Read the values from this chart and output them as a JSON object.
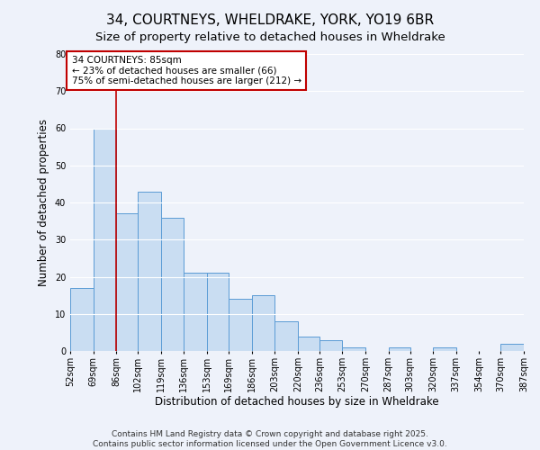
{
  "title": "34, COURTNEYS, WHELDRAKE, YORK, YO19 6BR",
  "subtitle": "Size of property relative to detached houses in Wheldrake",
  "xlabel": "Distribution of detached houses by size in Wheldrake",
  "ylabel": "Number of detached properties",
  "bins": [
    52,
    69,
    86,
    102,
    119,
    136,
    153,
    169,
    186,
    203,
    220,
    236,
    253,
    270,
    287,
    303,
    320,
    337,
    354,
    370,
    387
  ],
  "bin_labels": [
    "52sqm",
    "69sqm",
    "86sqm",
    "102sqm",
    "119sqm",
    "136sqm",
    "153sqm",
    "169sqm",
    "186sqm",
    "203sqm",
    "220sqm",
    "236sqm",
    "253sqm",
    "270sqm",
    "287sqm",
    "303sqm",
    "320sqm",
    "337sqm",
    "354sqm",
    "370sqm",
    "387sqm"
  ],
  "counts": [
    17,
    60,
    37,
    43,
    36,
    21,
    21,
    14,
    15,
    8,
    4,
    3,
    1,
    0,
    1,
    0,
    1,
    0,
    0,
    2
  ],
  "bar_color": "#c9ddf2",
  "bar_edge_color": "#5b9bd5",
  "property_line_x": 86,
  "annotation_text": "34 COURTNEYS: 85sqm\n← 23% of detached houses are smaller (66)\n75% of semi-detached houses are larger (212) →",
  "annotation_box_color": "white",
  "annotation_box_edge": "#c00000",
  "vline_color": "#c00000",
  "ylim": [
    0,
    80
  ],
  "yticks": [
    0,
    10,
    20,
    30,
    40,
    50,
    60,
    70,
    80
  ],
  "footer_line1": "Contains HM Land Registry data © Crown copyright and database right 2025.",
  "footer_line2": "Contains public sector information licensed under the Open Government Licence v3.0.",
  "background_color": "#eef2fa",
  "grid_color": "white",
  "title_fontsize": 11,
  "subtitle_fontsize": 9.5,
  "axis_label_fontsize": 8.5,
  "tick_fontsize": 7,
  "annotation_fontsize": 7.5,
  "footer_fontsize": 6.5
}
